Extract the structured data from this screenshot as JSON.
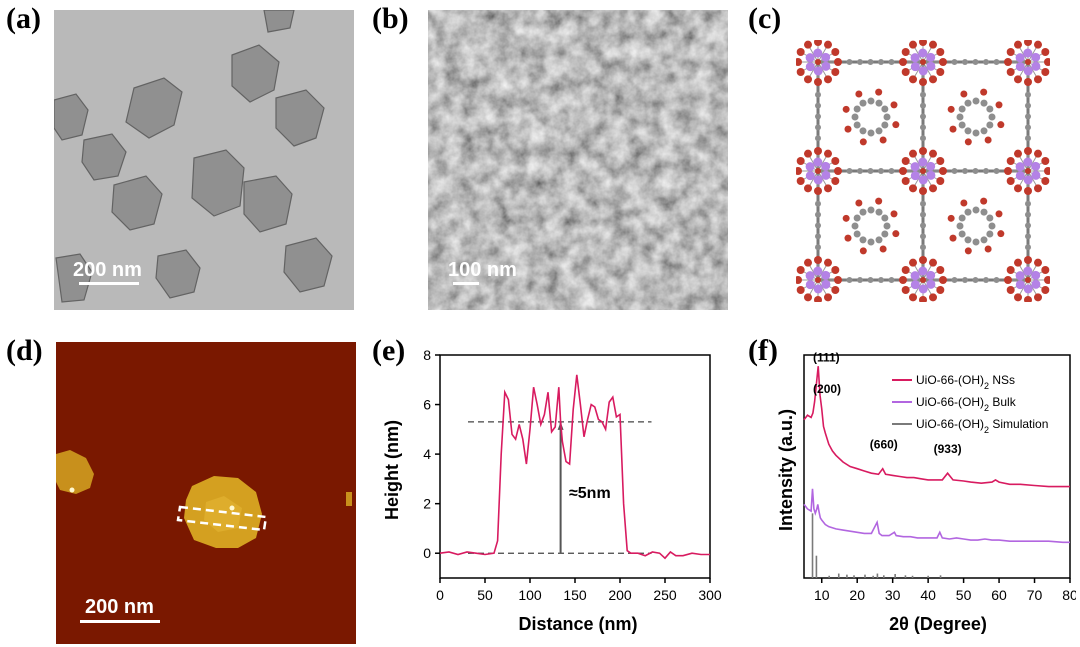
{
  "panels": {
    "a": {
      "label": "(a)",
      "scale_bar": "200 nm"
    },
    "b": {
      "label": "(b)",
      "scale_bar": "100 nm"
    },
    "c": {
      "label": "(c)"
    },
    "d": {
      "label": "(d)",
      "scale_bar": "200 nm"
    },
    "e": {
      "label": "(e)"
    },
    "f": {
      "label": "(f)"
    }
  },
  "colors": {
    "nss": "#d81b60",
    "bulk": "#b266e0",
    "simulation": "#7a7a7a",
    "afm_bg": "#7a1800",
    "afm_flake": "#d4a020",
    "zr_node": "#b482e6",
    "oxygen": "#c0392b",
    "carbon": "#8e8e8e"
  },
  "chart_data": [
    {
      "panel": "e",
      "type": "line",
      "xlabel": "Distance (nm)",
      "ylabel": "Height (nm)",
      "xlim": [
        0,
        300
      ],
      "ylim": [
        -1,
        8
      ],
      "xticks": [
        "0",
        "50",
        "100",
        "150",
        "200",
        "250",
        "300"
      ],
      "yticks": [
        "0",
        "2",
        "4",
        "6",
        "8"
      ],
      "annotation": "≈5nm",
      "reference_lines": [
        5.3,
        0
      ],
      "series": [
        {
          "x": [
            0,
            10,
            20,
            30,
            40,
            50,
            60,
            64,
            68,
            72,
            76,
            80,
            84,
            88,
            92,
            96,
            100,
            104,
            108,
            112,
            116,
            120,
            124,
            128,
            132,
            134,
            136,
            140,
            144,
            148,
            152,
            156,
            160,
            164,
            168,
            172,
            176,
            180,
            184,
            188,
            192,
            196,
            200,
            204,
            208,
            212,
            220,
            228,
            236,
            244,
            250,
            256,
            262,
            270,
            280,
            290,
            300
          ],
          "y": [
            0,
            0.05,
            -0.05,
            0.05,
            0,
            -0.05,
            0,
            0.5,
            4.0,
            6.5,
            6.2,
            4.8,
            4.6,
            5.2,
            4.6,
            3.6,
            5.0,
            6.7,
            6.0,
            5.2,
            5.6,
            6.5,
            4.9,
            5.1,
            6.7,
            5.3,
            4.5,
            3.7,
            3.6,
            5.8,
            7.2,
            6.0,
            4.7,
            5.4,
            6.0,
            5.9,
            5.4,
            5.3,
            5.0,
            6.1,
            6.3,
            5.5,
            5.6,
            2.0,
            0.1,
            0.0,
            0.0,
            -0.1,
            0.05,
            0.0,
            -0.2,
            0.05,
            -0.1,
            -0.1,
            0.0,
            -0.05,
            -0.05
          ]
        }
      ]
    },
    {
      "panel": "f",
      "type": "line",
      "xlabel": "2θ (Degree)",
      "ylabel": "Intensity (a.u.)",
      "xlim": [
        5,
        80
      ],
      "xticks": [
        "10",
        "20",
        "30",
        "40",
        "50",
        "60",
        "70",
        "80"
      ],
      "peak_labels": [
        "(111)",
        "(200)",
        "(660)",
        "(933)"
      ],
      "legend": [
        {
          "text": "UiO-66-(OH)",
          "sub": "2",
          "suffix": " NSs"
        },
        {
          "text": "UiO-66-(OH)",
          "sub": "2",
          "suffix": " Bulk"
        },
        {
          "text": "UiO-66-(OH)",
          "sub": "2",
          "suffix": " Simulation"
        }
      ],
      "legend_position": "top-right",
      "series": [
        {
          "id": "nss",
          "x": [
            5,
            6,
            7,
            7.5,
            8,
            8.5,
            9,
            9.5,
            10,
            10.5,
            11,
            12,
            13,
            14,
            16,
            18,
            20,
            22,
            24,
            26,
            27.2,
            28,
            30,
            32,
            34,
            36,
            38,
            40,
            42,
            44,
            45.5,
            47,
            50,
            52,
            55,
            58,
            59,
            60,
            63,
            66,
            70,
            74,
            78,
            80
          ],
          "y": [
            0.71,
            0.73,
            0.72,
            0.74,
            0.79,
            0.87,
            0.95,
            0.82,
            0.76,
            0.68,
            0.65,
            0.6,
            0.57,
            0.55,
            0.52,
            0.5,
            0.49,
            0.48,
            0.47,
            0.465,
            0.49,
            0.465,
            0.46,
            0.455,
            0.45,
            0.45,
            0.445,
            0.44,
            0.44,
            0.44,
            0.47,
            0.44,
            0.435,
            0.43,
            0.425,
            0.43,
            0.44,
            0.43,
            0.42,
            0.42,
            0.415,
            0.41,
            0.41,
            0.41
          ]
        },
        {
          "id": "bulk",
          "x": [
            5,
            6,
            7,
            7.4,
            7.8,
            8.2,
            8.6,
            8.9,
            9.2,
            9.6,
            10,
            11,
            12,
            14,
            16,
            18,
            20,
            22,
            24,
            25.6,
            26.2,
            27,
            29,
            30.5,
            31,
            33,
            35,
            37,
            40,
            42.5,
            43.3,
            44,
            46,
            48,
            50,
            52,
            54,
            56,
            58,
            60,
            63,
            66,
            70,
            74,
            78,
            80
          ],
          "y": [
            0.33,
            0.31,
            0.3,
            0.4,
            0.31,
            0.29,
            0.31,
            0.33,
            0.3,
            0.27,
            0.26,
            0.24,
            0.23,
            0.22,
            0.215,
            0.21,
            0.205,
            0.2,
            0.2,
            0.25,
            0.2,
            0.19,
            0.19,
            0.205,
            0.19,
            0.185,
            0.185,
            0.18,
            0.18,
            0.18,
            0.205,
            0.18,
            0.175,
            0.18,
            0.175,
            0.17,
            0.17,
            0.175,
            0.17,
            0.17,
            0.165,
            0.165,
            0.165,
            0.165,
            0.16,
            0.16
          ]
        },
        {
          "id": "simulation",
          "type": "stick",
          "x": [
            7.4,
            8.5,
            12.1,
            14.8,
            17.1,
            19.1,
            22.2,
            24.5,
            25.7,
            27.5,
            30.7,
            33.6,
            35.6,
            40.0,
            43.5
          ],
          "y": [
            0.29,
            0.1,
            0.01,
            0.02,
            0.015,
            0.012,
            0.015,
            0.01,
            0.02,
            0.012,
            0.018,
            0.012,
            0.01,
            0.01,
            0.012
          ]
        }
      ]
    }
  ]
}
